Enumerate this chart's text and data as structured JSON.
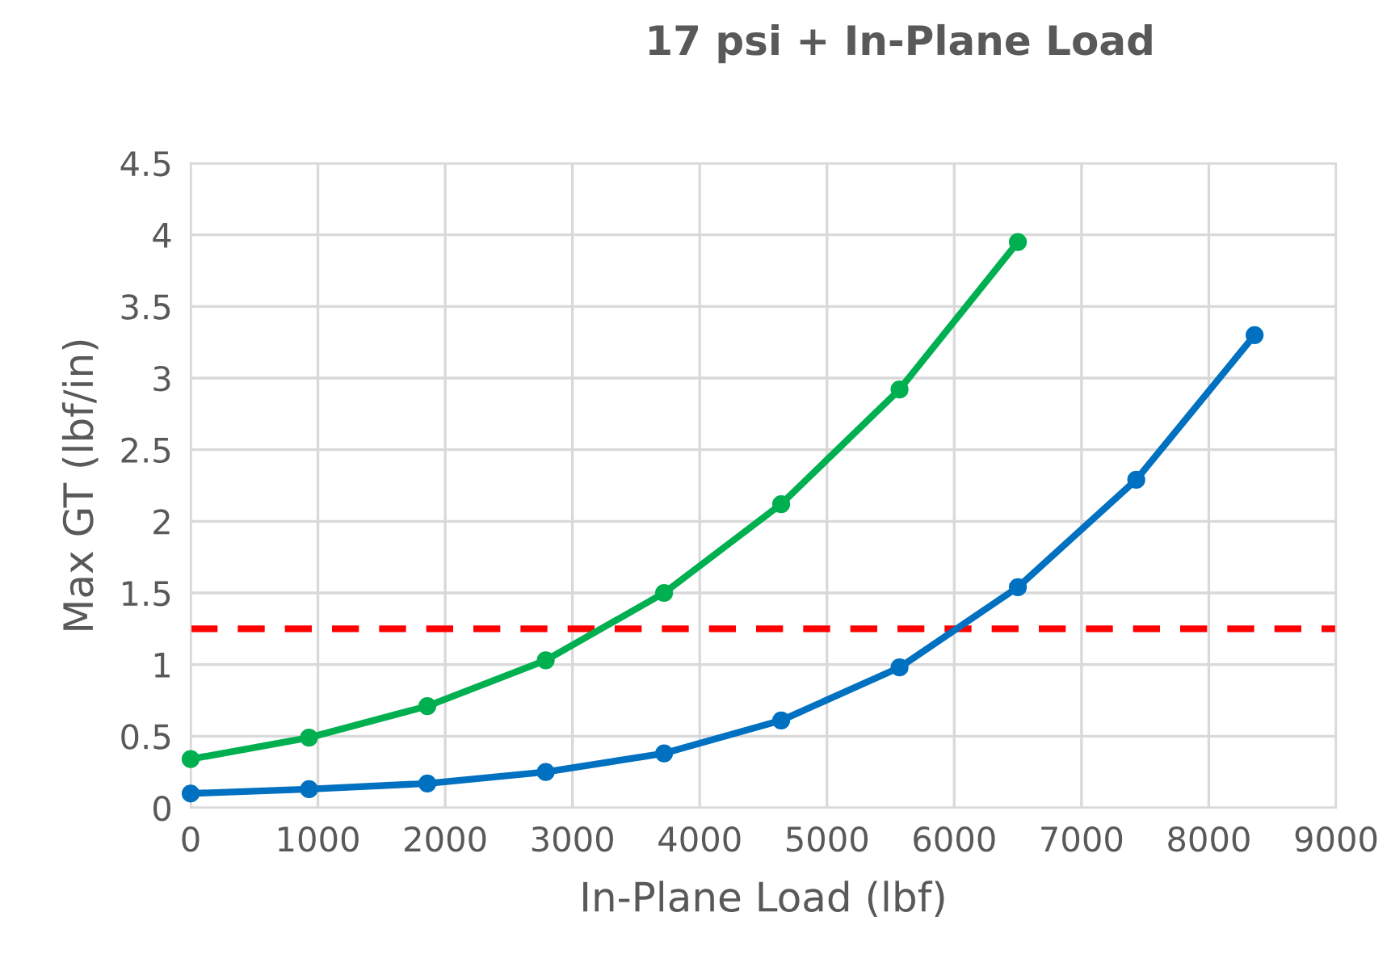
{
  "chart_data": {
    "type": "line",
    "title": "17 psi + In-Plane Load",
    "xlabel": "In-Plane Load (lbf)",
    "ylabel": "Max GT (lbf/in)",
    "series": [
      {
        "color": "#00b050",
        "x": [
          0,
          930,
          1860,
          2790,
          3720,
          4640,
          5570,
          6500
        ],
        "values": [
          0.34,
          0.49,
          0.71,
          1.03,
          1.5,
          2.12,
          2.92,
          3.95
        ]
      },
      {
        "color": "#0070c0",
        "x": [
          0,
          930,
          1860,
          2790,
          3720,
          4640,
          5570,
          6500,
          7430,
          8360
        ],
        "values": [
          0.1,
          0.13,
          0.17,
          0.25,
          0.38,
          0.61,
          0.98,
          1.54,
          2.29,
          3.3
        ]
      }
    ],
    "xlim": [
      0,
      9000
    ],
    "xticks": [
      0,
      1000,
      2000,
      3000,
      4000,
      5000,
      6000,
      7000,
      8000,
      9000
    ],
    "ylim": [
      0,
      4.5
    ],
    "yticks": [
      0,
      0.5,
      1,
      1.5,
      2,
      2.5,
      3,
      3.5,
      4,
      4.5
    ],
    "ref_lines": [
      {
        "axis": "y",
        "value": 1.25,
        "color": "#ff0000",
        "line_style": "dashed"
      }
    ],
    "grid": true,
    "legend": false,
    "marker": "circle",
    "line_style": "solid"
  }
}
